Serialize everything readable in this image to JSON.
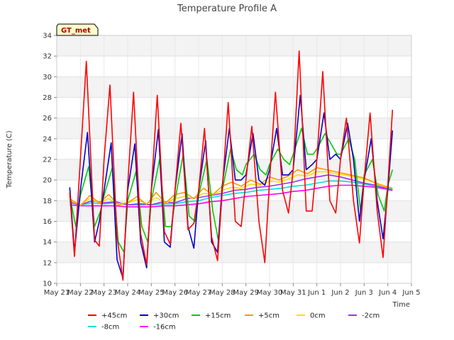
{
  "chart_data": {
    "type": "line",
    "title": "Temperature Profile A",
    "xlabel": "Time",
    "ylabel": "Temperature (C)",
    "badge": "GT_met",
    "ylim": [
      10,
      34
    ],
    "yticks": [
      10,
      12,
      14,
      16,
      18,
      20,
      22,
      24,
      26,
      28,
      30,
      32,
      34
    ],
    "xlim": [
      0,
      15
    ],
    "xticks": [
      {
        "x": 0,
        "label": "May 21"
      },
      {
        "x": 1,
        "label": "May 22"
      },
      {
        "x": 2,
        "label": "May 23"
      },
      {
        "x": 3,
        "label": "May 24"
      },
      {
        "x": 4,
        "label": "May 25"
      },
      {
        "x": 5,
        "label": "May 26"
      },
      {
        "x": 6,
        "label": "May 27"
      },
      {
        "x": 7,
        "label": "May 28"
      },
      {
        "x": 8,
        "label": "May 29"
      },
      {
        "x": 9,
        "label": "May 30"
      },
      {
        "x": 10,
        "label": "May 31"
      },
      {
        "x": 11,
        "label": "Jun 1"
      },
      {
        "x": 12,
        "label": "Jun 2"
      },
      {
        "x": 13,
        "label": "Jun 3"
      },
      {
        "x": 14,
        "label": "Jun 4"
      },
      {
        "x": 15,
        "label": "Jun 5"
      }
    ],
    "grid": true,
    "legend_position": "bottom",
    "series": [
      {
        "name": "+45cm",
        "color": "#ff0000",
        "x": [
          0.55,
          0.75,
          1.0,
          1.25,
          1.6,
          1.8,
          2.0,
          2.25,
          2.55,
          2.8,
          3.0,
          3.25,
          3.55,
          3.8,
          4.0,
          4.25,
          4.55,
          4.8,
          5.0,
          5.25,
          5.55,
          5.8,
          6.0,
          6.25,
          6.55,
          6.8,
          7.0,
          7.25,
          7.55,
          7.8,
          8.0,
          8.25,
          8.55,
          8.8,
          9.0,
          9.25,
          9.55,
          9.8,
          10.0,
          10.25,
          10.55,
          10.8,
          11.0,
          11.25,
          11.55,
          11.8,
          12.0,
          12.25,
          12.55,
          12.8,
          13.0,
          13.25,
          13.55,
          13.8,
          14.0,
          14.2
        ],
        "y": [
          18.8,
          12.6,
          22.0,
          31.5,
          14.2,
          13.6,
          22.0,
          29.2,
          14.5,
          10.3,
          19.5,
          28.5,
          14.8,
          11.8,
          19.0,
          28.2,
          15.0,
          13.8,
          19.0,
          25.5,
          15.2,
          15.8,
          19.0,
          25.0,
          14.5,
          12.2,
          19.0,
          27.5,
          16.0,
          15.5,
          20.0,
          25.2,
          16.0,
          12.0,
          20.0,
          28.5,
          19.0,
          16.8,
          21.0,
          32.5,
          17.0,
          17.0,
          22.0,
          30.5,
          18.0,
          16.8,
          22.0,
          26.0,
          18.0,
          13.9,
          20.0,
          26.5,
          17.0,
          12.5,
          19.5,
          26.8
        ]
      },
      {
        "name": "+30cm",
        "color": "#0000cc",
        "x": [
          0.55,
          0.75,
          1.0,
          1.3,
          1.6,
          1.8,
          2.0,
          2.3,
          2.55,
          2.8,
          3.0,
          3.3,
          3.55,
          3.8,
          4.0,
          4.3,
          4.55,
          4.8,
          5.0,
          5.3,
          5.55,
          5.8,
          6.0,
          6.3,
          6.55,
          6.8,
          7.0,
          7.3,
          7.55,
          7.8,
          8.0,
          8.3,
          8.55,
          8.8,
          9.0,
          9.3,
          9.55,
          9.8,
          10.0,
          10.3,
          10.55,
          10.8,
          11.0,
          11.3,
          11.55,
          11.8,
          12.0,
          12.3,
          12.55,
          12.8,
          13.0,
          13.3,
          13.55,
          13.8,
          14.0,
          14.2
        ],
        "y": [
          19.3,
          13.0,
          19.0,
          24.6,
          14.0,
          16.0,
          19.0,
          23.6,
          12.3,
          10.5,
          19.0,
          23.5,
          14.0,
          11.5,
          19.0,
          24.9,
          14.0,
          13.5,
          19.0,
          24.5,
          15.5,
          13.4,
          19.0,
          23.8,
          14.0,
          13.0,
          19.5,
          25.0,
          20.0,
          20.0,
          20.5,
          24.5,
          20.0,
          19.5,
          21.0,
          25.0,
          20.5,
          20.5,
          21.0,
          28.2,
          21.0,
          21.5,
          22.0,
          26.5,
          22.0,
          22.5,
          22.0,
          25.5,
          22.0,
          16.0,
          20.0,
          24.0,
          18.0,
          14.3,
          19.0,
          24.8
        ]
      },
      {
        "name": "+15cm",
        "color": "#00cc00",
        "x": [
          0.55,
          0.8,
          1.0,
          1.35,
          1.6,
          1.85,
          2.0,
          2.35,
          2.6,
          2.85,
          3.0,
          3.35,
          3.6,
          3.85,
          4.0,
          4.35,
          4.6,
          4.85,
          5.0,
          5.35,
          5.6,
          5.85,
          6.0,
          6.35,
          6.6,
          6.85,
          7.0,
          7.35,
          7.6,
          7.85,
          8.0,
          8.35,
          8.6,
          8.85,
          9.0,
          9.35,
          9.6,
          9.85,
          10.0,
          10.35,
          10.6,
          10.85,
          11.0,
          11.35,
          11.6,
          11.85,
          12.0,
          12.35,
          12.6,
          12.85,
          13.0,
          13.35,
          13.6,
          13.85,
          14.0,
          14.2
        ],
        "y": [
          18.5,
          15.5,
          18.5,
          21.3,
          15.5,
          17.0,
          18.5,
          21.2,
          14.0,
          13.0,
          18.0,
          20.8,
          15.5,
          14.0,
          18.0,
          22.0,
          15.5,
          15.5,
          18.0,
          22.5,
          16.5,
          16.0,
          18.5,
          22.0,
          17.0,
          14.0,
          19.0,
          23.0,
          21.0,
          20.5,
          21.5,
          22.5,
          21.0,
          20.5,
          21.5,
          23.0,
          22.0,
          21.5,
          22.5,
          25.0,
          22.5,
          22.5,
          23.0,
          24.5,
          23.5,
          22.5,
          22.5,
          24.0,
          22.0,
          17.0,
          20.5,
          22.0,
          18.5,
          17.0,
          19.5,
          21.0
        ]
      },
      {
        "name": "+5cm",
        "color": "#ff9900",
        "x": [
          0.55,
          1.0,
          1.4,
          1.8,
          2.2,
          2.6,
          3.0,
          3.4,
          3.8,
          4.2,
          4.6,
          5.0,
          5.4,
          5.8,
          6.2,
          6.6,
          7.0,
          7.4,
          7.8,
          8.2,
          8.6,
          9.0,
          9.4,
          9.8,
          10.2,
          10.6,
          11.0,
          11.4,
          11.8,
          12.2,
          12.6,
          13.0,
          13.4,
          13.8,
          14.2
        ],
        "y": [
          18.2,
          17.5,
          18.5,
          17.8,
          18.6,
          17.6,
          17.8,
          18.4,
          17.6,
          18.8,
          17.8,
          18.6,
          18.8,
          18.2,
          19.2,
          18.6,
          19.4,
          19.8,
          19.4,
          20.0,
          19.6,
          20.3,
          20.0,
          20.4,
          21.0,
          20.6,
          21.2,
          21.0,
          20.8,
          20.6,
          20.4,
          20.2,
          19.8,
          19.4,
          19.2
        ]
      },
      {
        "name": "0cm",
        "color": "#ffdd00",
        "x": [
          0.55,
          1.0,
          1.4,
          1.8,
          2.2,
          2.6,
          3.0,
          3.4,
          3.8,
          4.2,
          4.6,
          5.0,
          5.4,
          5.8,
          6.2,
          6.6,
          7.0,
          7.4,
          7.8,
          8.2,
          8.6,
          9.0,
          9.4,
          9.8,
          10.2,
          10.6,
          11.0,
          11.4,
          11.8,
          12.2,
          12.6,
          13.0,
          13.4,
          13.8,
          14.2
        ],
        "y": [
          18.0,
          17.6,
          18.2,
          17.8,
          18.2,
          17.7,
          17.8,
          18.1,
          17.7,
          18.3,
          17.8,
          18.2,
          18.4,
          18.2,
          18.7,
          18.6,
          19.0,
          19.3,
          19.2,
          19.6,
          19.5,
          19.9,
          19.8,
          20.1,
          20.5,
          20.4,
          20.8,
          20.8,
          20.6,
          20.5,
          20.3,
          20.1,
          19.8,
          19.5,
          19.2
        ]
      },
      {
        "name": "-2cm",
        "color": "#9933ff",
        "x": [
          0.55,
          1.0,
          1.5,
          2.0,
          2.5,
          3.0,
          3.5,
          4.0,
          4.5,
          5.0,
          5.5,
          6.0,
          6.5,
          7.0,
          7.5,
          8.0,
          8.5,
          9.0,
          9.5,
          10.0,
          10.5,
          11.0,
          11.5,
          12.0,
          12.5,
          13.0,
          13.5,
          14.0,
          14.2
        ],
        "y": [
          17.9,
          17.6,
          18.0,
          17.8,
          17.9,
          17.6,
          17.7,
          17.6,
          17.9,
          17.8,
          18.2,
          18.3,
          18.5,
          18.7,
          19.0,
          19.1,
          19.3,
          19.4,
          19.6,
          19.8,
          20.1,
          20.3,
          20.5,
          20.3,
          20.0,
          19.7,
          19.5,
          19.1,
          19.0
        ]
      },
      {
        "name": "-8cm",
        "color": "#00dddd",
        "x": [
          0.55,
          1.0,
          1.5,
          2.0,
          2.5,
          3.0,
          3.5,
          4.0,
          4.5,
          5.0,
          5.5,
          6.0,
          6.5,
          7.0,
          7.5,
          8.0,
          8.5,
          9.0,
          9.5,
          10.0,
          10.5,
          11.0,
          11.5,
          12.0,
          12.5,
          13.0,
          13.5,
          14.0,
          14.2
        ],
        "y": [
          17.8,
          17.6,
          17.8,
          17.7,
          17.8,
          17.6,
          17.6,
          17.6,
          17.7,
          17.7,
          17.9,
          18.0,
          18.3,
          18.5,
          18.7,
          18.8,
          19.0,
          19.1,
          19.2,
          19.4,
          19.5,
          19.7,
          19.9,
          19.9,
          19.8,
          19.6,
          19.4,
          19.2,
          19.1
        ]
      },
      {
        "name": "-16cm",
        "color": "#ff00ff",
        "x": [
          0.55,
          1.0,
          1.5,
          2.0,
          2.5,
          3.0,
          3.5,
          4.0,
          4.5,
          5.0,
          5.5,
          6.0,
          6.5,
          7.0,
          7.5,
          8.0,
          8.5,
          9.0,
          9.5,
          10.0,
          10.5,
          11.0,
          11.5,
          12.0,
          12.5,
          13.0,
          13.5,
          14.0,
          14.2
        ],
        "y": [
          17.6,
          17.5,
          17.5,
          17.5,
          17.5,
          17.4,
          17.4,
          17.4,
          17.5,
          17.5,
          17.6,
          17.7,
          17.9,
          18.0,
          18.2,
          18.4,
          18.5,
          18.6,
          18.7,
          18.9,
          19.0,
          19.2,
          19.4,
          19.5,
          19.5,
          19.4,
          19.3,
          19.1,
          19.0
        ]
      }
    ]
  }
}
